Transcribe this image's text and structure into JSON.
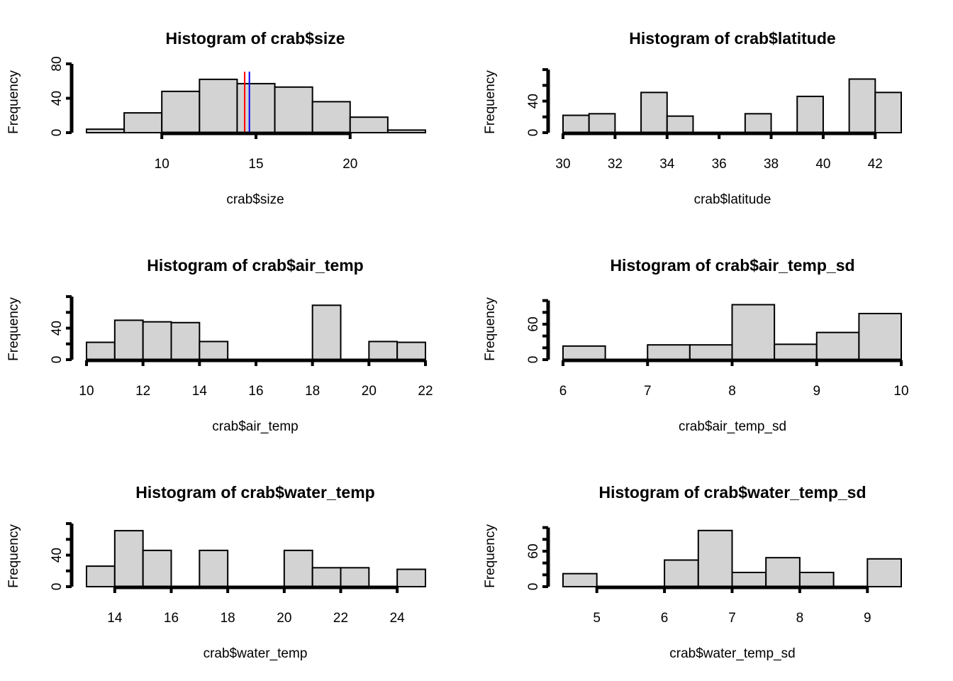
{
  "chart_data": [
    {
      "type": "bar",
      "title": "Histogram of crab$size",
      "xlabel": "crab$size",
      "ylabel": "Frequency",
      "breaks": [
        6,
        8,
        10,
        12,
        14,
        16,
        18,
        20,
        22,
        24
      ],
      "values": [
        4,
        23,
        48,
        62,
        57,
        53,
        36,
        18,
        3
      ],
      "xticks": [
        10,
        15,
        20
      ],
      "xaxis_range": [
        10,
        20
      ],
      "yticks": [
        0,
        40,
        80
      ],
      "yaxis_range": [
        0,
        80
      ],
      "ylim": [
        0,
        66
      ],
      "vlines": [
        {
          "x": 14.4,
          "color": "#ff0000"
        },
        {
          "x": 14.65,
          "color": "#0000ff"
        }
      ]
    },
    {
      "type": "bar",
      "title": "Histogram of crab$latitude",
      "xlabel": "crab$latitude",
      "ylabel": "Frequency",
      "breaks": [
        30,
        31,
        32,
        33,
        34,
        35,
        36,
        37,
        38,
        39,
        40,
        41,
        42,
        43
      ],
      "values": [
        22,
        24,
        0,
        51,
        21,
        0,
        0,
        24,
        0,
        46,
        0,
        68,
        51
      ],
      "xticks": [
        30,
        32,
        34,
        36,
        38,
        40,
        42
      ],
      "xaxis_range": [
        30,
        42
      ],
      "yticks": [
        0,
        40
      ],
      "ytick_marks": [
        0,
        20,
        40,
        60,
        80
      ],
      "yaxis_range": [
        0,
        80
      ],
      "ylim": [
        0,
        72
      ]
    },
    {
      "type": "bar",
      "title": "Histogram of crab$air_temp",
      "xlabel": "crab$air_temp",
      "ylabel": "Frequency",
      "breaks": [
        10,
        11,
        12,
        13,
        14,
        15,
        16,
        17,
        18,
        19,
        20,
        21,
        22
      ],
      "values": [
        22,
        50,
        48,
        47,
        23,
        0,
        0,
        0,
        69,
        0,
        23,
        22
      ],
      "xticks": [
        10,
        12,
        14,
        16,
        18,
        20,
        22
      ],
      "xaxis_range": [
        10,
        22
      ],
      "yticks": [
        0,
        40
      ],
      "ytick_marks": [
        0,
        20,
        40,
        60,
        80
      ],
      "yaxis_range": [
        0,
        80
      ],
      "ylim": [
        0,
        72
      ]
    },
    {
      "type": "bar",
      "title": "Histogram of crab$air_temp_sd",
      "xlabel": "crab$air_temp_sd",
      "ylabel": "Frequency",
      "breaks": [
        6,
        6.5,
        7,
        7.5,
        8,
        8.5,
        9,
        9.5,
        10
      ],
      "values": [
        23,
        0,
        25,
        25,
        93,
        26,
        46,
        78
      ],
      "xticks": [
        6,
        7,
        8,
        9,
        10
      ],
      "xaxis_range": [
        6,
        10
      ],
      "yticks": [
        0,
        60
      ],
      "ytick_marks": [
        0,
        20,
        40,
        60,
        80,
        100
      ],
      "yaxis_range": [
        0,
        100
      ],
      "ylim": [
        0,
        96
      ]
    },
    {
      "type": "bar",
      "title": "Histogram of crab$water_temp",
      "xlabel": "crab$water_temp",
      "ylabel": "Frequency",
      "breaks": [
        13,
        14,
        15,
        16,
        17,
        18,
        19,
        20,
        21,
        22,
        23,
        24,
        25
      ],
      "values": [
        26,
        71,
        46,
        0,
        46,
        0,
        0,
        46,
        24,
        24,
        0,
        22
      ],
      "xticks": [
        14,
        16,
        18,
        20,
        22,
        24
      ],
      "xaxis_range": [
        14,
        24
      ],
      "yticks": [
        0,
        40
      ],
      "ytick_marks": [
        0,
        20,
        40,
        60,
        80
      ],
      "yaxis_range": [
        0,
        80
      ],
      "ylim": [
        0,
        72
      ]
    },
    {
      "type": "bar",
      "title": "Histogram of crab$water_temp_sd",
      "xlabel": "crab$water_temp_sd",
      "ylabel": "Frequency",
      "breaks": [
        4.5,
        5,
        5.5,
        6,
        6.5,
        7,
        7.5,
        8,
        8.5,
        9,
        9.5
      ],
      "values": [
        22,
        0,
        0,
        45,
        95,
        24,
        49,
        24,
        0,
        47
      ],
      "xticks": [
        5,
        6,
        7,
        8,
        9
      ],
      "xaxis_range": [
        5,
        9
      ],
      "yticks": [
        0,
        60
      ],
      "ytick_marks": [
        0,
        20,
        40,
        60,
        80,
        100
      ],
      "yaxis_range": [
        0,
        100
      ],
      "ylim": [
        0,
        96
      ]
    }
  ]
}
